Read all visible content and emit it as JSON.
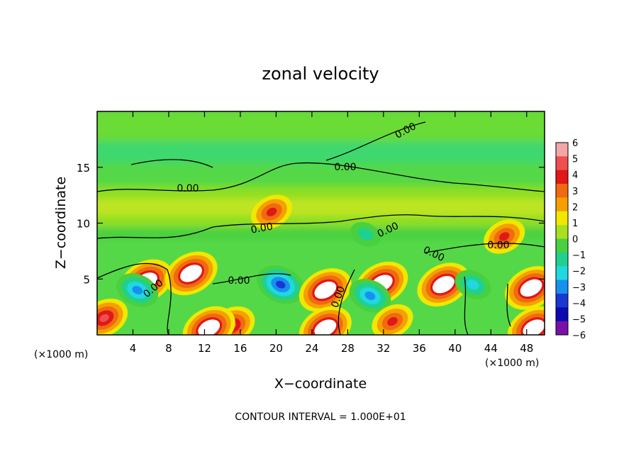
{
  "chart_data": {
    "type": "heatmap",
    "title": "zonal velocity",
    "xlabel": "X−coordinate",
    "ylabel": "Z−coordinate",
    "x_units_left": "(×1000 m)",
    "x_units_right": "(×1000 m)",
    "xlim": [
      0,
      50
    ],
    "ylim": [
      0,
      20
    ],
    "x_ticks": [
      4,
      8,
      12,
      16,
      20,
      24,
      28,
      32,
      36,
      40,
      44,
      48
    ],
    "y_ticks": [
      5,
      10,
      15
    ],
    "colorbar": {
      "ticks": [
        6,
        5,
        4,
        3,
        2,
        1,
        0,
        -1,
        -2,
        -3,
        -4,
        -5,
        -6
      ],
      "tick_labels": [
        "6",
        "5",
        "4",
        "3",
        "2",
        "1",
        "0",
        "−1",
        "−2",
        "−3",
        "−4",
        "−5",
        "−6"
      ],
      "colors": [
        "#f4a6a6",
        "#ee5050",
        "#e01818",
        "#f06a10",
        "#f5a000",
        "#f0e800",
        "#a8e020",
        "#48d040",
        "#20d090",
        "#20d8e0",
        "#1890f0",
        "#1838d0",
        "#0a0ab0",
        "#7a10a8"
      ]
    },
    "contour_label": "0.00",
    "contour_interval_text": "CONTOUR INTERVAL = 1.000E+01",
    "features": [
      {
        "x": 5.5,
        "z": 4.8,
        "value": 6,
        "sign": "positive"
      },
      {
        "x": 4.5,
        "z": 4.0,
        "value": -4,
        "sign": "negative"
      },
      {
        "x": 10.5,
        "z": 5.5,
        "value": 6,
        "sign": "positive"
      },
      {
        "x": 15.0,
        "z": 0.8,
        "value": 5,
        "sign": "positive"
      },
      {
        "x": 12.5,
        "z": 0.6,
        "value": 6,
        "sign": "positive"
      },
      {
        "x": 20.5,
        "z": 4.5,
        "value": -5,
        "sign": "negative"
      },
      {
        "x": 25.5,
        "z": 4.0,
        "value": 6,
        "sign": "positive"
      },
      {
        "x": 25.5,
        "z": 0.6,
        "value": 6,
        "sign": "positive"
      },
      {
        "x": 31.8,
        "z": 4.6,
        "value": 6,
        "sign": "positive"
      },
      {
        "x": 30.5,
        "z": 3.5,
        "value": -4,
        "sign": "negative"
      },
      {
        "x": 33.0,
        "z": 1.2,
        "value": 4,
        "sign": "positive"
      },
      {
        "x": 38.7,
        "z": 4.5,
        "value": 6,
        "sign": "positive"
      },
      {
        "x": 42.0,
        "z": 4.5,
        "value": -3,
        "sign": "negative"
      },
      {
        "x": 48.5,
        "z": 4.2,
        "value": 6,
        "sign": "positive"
      },
      {
        "x": 48.8,
        "z": 0.6,
        "value": 6,
        "sign": "positive"
      },
      {
        "x": 0.8,
        "z": 1.5,
        "value": 5,
        "sign": "positive"
      },
      {
        "x": 19.5,
        "z": 11.0,
        "value": 4,
        "sign": "positive"
      },
      {
        "x": 45.5,
        "z": 8.8,
        "value": 4,
        "sign": "positive"
      },
      {
        "x": 30.0,
        "z": 9.0,
        "value": -2,
        "sign": "negative"
      }
    ]
  }
}
